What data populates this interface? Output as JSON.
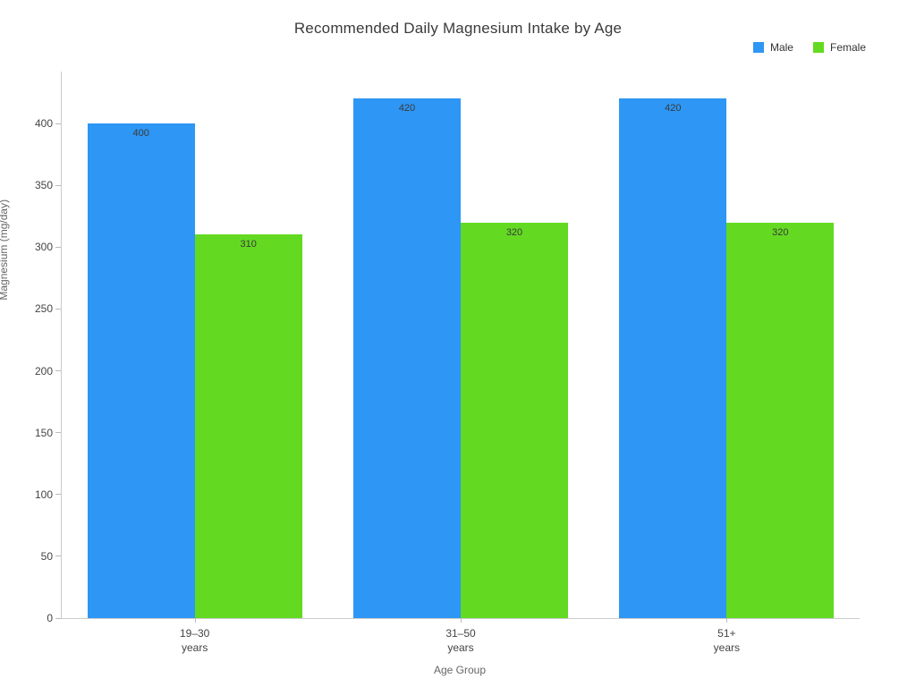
{
  "chart_data": {
    "type": "bar",
    "title": "Recommended Daily Magnesium Intake by Age",
    "xlabel": "Age Group",
    "ylabel": "Magnesium (mg/day)",
    "categories": [
      "19–30\nyears",
      "31–50\nyears",
      "51+\nyears"
    ],
    "series": [
      {
        "name": "Male",
        "color": "#2e96f4",
        "values": [
          400,
          420,
          420
        ]
      },
      {
        "name": "Female",
        "color": "#63da21",
        "values": [
          310,
          320,
          320
        ]
      }
    ],
    "yticks": [
      0,
      50,
      100,
      150,
      200,
      250,
      300,
      350,
      400
    ],
    "ylim": [
      0,
      442
    ],
    "grid": false,
    "legend_position": "top-right",
    "bar_labels": true
  }
}
